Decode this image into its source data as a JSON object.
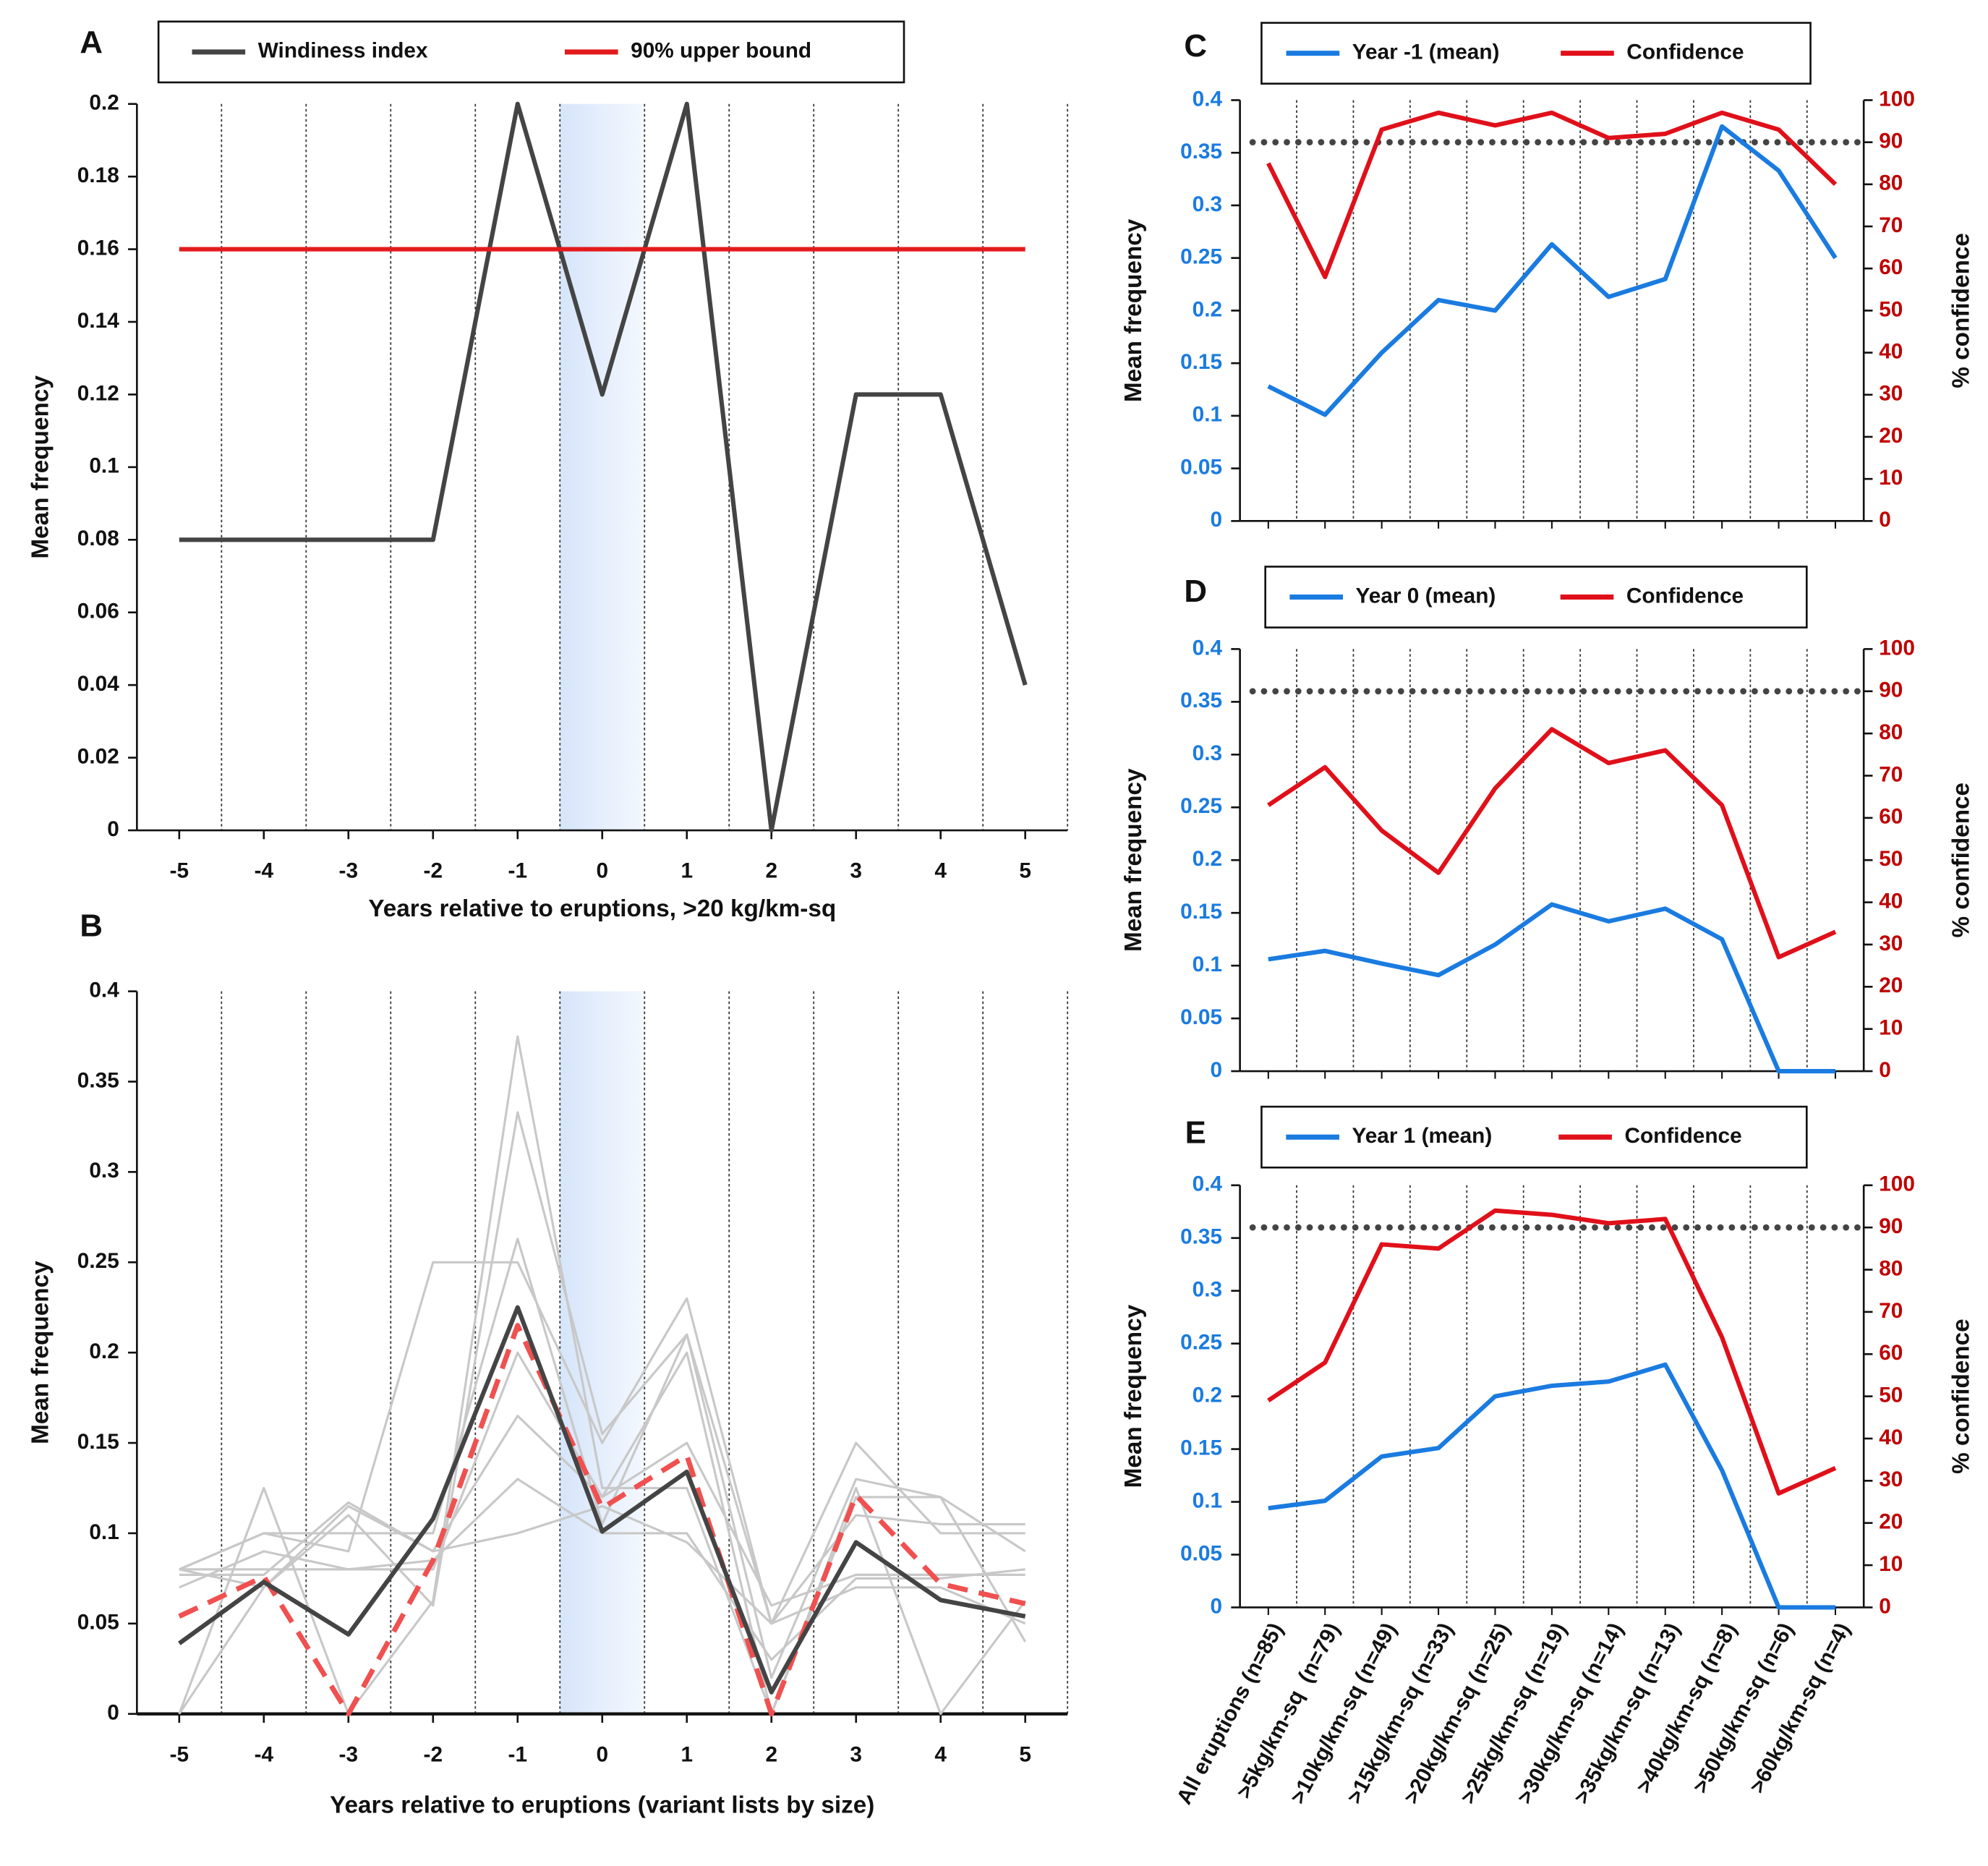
{
  "chart_data": [
    {
      "type": "line",
      "panel_label": "A",
      "x": [
        -5,
        -4,
        -3,
        -2,
        -1,
        0,
        1,
        2,
        3,
        4,
        5
      ],
      "xlim": [
        -5.5,
        5.5
      ],
      "xticks": [
        -5,
        -4,
        -3,
        -2,
        -1,
        0,
        1,
        2,
        3,
        4,
        5
      ],
      "ylim": [
        0,
        0.2
      ],
      "yticks": [
        0,
        0.02,
        0.04,
        0.06,
        0.08,
        0.1,
        0.12,
        0.14,
        0.16,
        0.18,
        0.2
      ],
      "xlabel": "Years relative to eruptions, >20 kg/km-sq",
      "ylabel": "Mean frequency",
      "shaded_span": [
        -0.5,
        0.5
      ],
      "separators": true,
      "legend": "top",
      "series": [
        {
          "name": "Windiness index",
          "color": "#444444",
          "values": [
            0.08,
            0.08,
            0.08,
            0.08,
            0.2,
            0.12,
            0.2,
            0,
            0.12,
            0.12,
            0.04
          ]
        },
        {
          "name": "90% upper bound",
          "color": "#e31a1c",
          "values": [
            0.16,
            0.16,
            0.16,
            0.16,
            0.16,
            0.16,
            0.16,
            0.16,
            0.16,
            0.16,
            0.16
          ]
        }
      ]
    },
    {
      "type": "line",
      "panel_label": "B",
      "x": [
        -5,
        -4,
        -3,
        -2,
        -1,
        0,
        1,
        2,
        3,
        4,
        5
      ],
      "xlim": [
        -5.5,
        5.5
      ],
      "xticks": [
        -5,
        -4,
        -3,
        -2,
        -1,
        0,
        1,
        2,
        3,
        4,
        5
      ],
      "ylim": [
        0,
        0.4
      ],
      "yticks": [
        0,
        0.05,
        0.1,
        0.15,
        0.2,
        0.25,
        0.3,
        0.35,
        0.4
      ],
      "xlabel": "Years relative to eruptions (variant lists by size)",
      "ylabel": "Mean frequency",
      "shaded_span": [
        -0.5,
        0.5
      ],
      "separators": true,
      "series": [
        {
          "color": "#c8c8c8",
          "values": [
            0.08,
            0.08,
            0.08,
            0.08,
            0.2,
            0.12,
            0.2,
            0,
            0.12,
            0.12,
            0.04
          ]
        },
        {
          "color": "#c8c8c8",
          "values": [
            0.08,
            0.1,
            0.09,
            0.25,
            0.25,
            0.15,
            0.23,
            0.05,
            0.15,
            0.1,
            0.1
          ]
        },
        {
          "color": "#c8c8c8",
          "values": [
            0,
            0.125,
            0,
            0.0625,
            0.375,
            0.125,
            0.125,
            0,
            0.125,
            0,
            0.0625
          ]
        },
        {
          "color": "#c8c8c8",
          "values": [
            0.08,
            0.07,
            0.11,
            0.06,
            0.333,
            0.155,
            0.21,
            0.02,
            0.13,
            0.12,
            0.09
          ]
        },
        {
          "color": "#c8c8c8",
          "values": [
            0.08,
            0.1,
            0.1,
            0.1,
            0.263,
            0.105,
            0.21,
            0.05,
            0.11,
            0.105,
            0.105
          ]
        },
        {
          "color": "#c8c8c8",
          "values": [
            0.077,
            0.077,
            0.117,
            0.09,
            0.165,
            0.12,
            0.15,
            0.06,
            0.077,
            0.077,
            0.077
          ]
        },
        {
          "color": "#c8c8c8",
          "values": [
            0.07,
            0.09,
            0.08,
            0.085,
            0.13,
            0.1,
            0.1,
            0.03,
            0.075,
            0.075,
            0.08
          ]
        },
        {
          "color": "#c8c8c8",
          "values": [
            0,
            0.07,
            0.115,
            0.09,
            0.1,
            0.115,
            0.095,
            0.05,
            0.07,
            0.07,
            0.05
          ]
        },
        {
          "color": "#f05050",
          "dashed": true,
          "values": [
            0.054,
            0.076,
            0,
            0.085,
            0.215,
            0.114,
            0.143,
            0,
            0.121,
            0.072,
            0.061
          ]
        },
        {
          "color": "#444444",
          "values": [
            0.039,
            0.073,
            0.044,
            0.108,
            0.225,
            0.101,
            0.134,
            0.012,
            0.095,
            0.063,
            0.054
          ]
        }
      ]
    },
    {
      "type": "line",
      "panel_label": "C",
      "categories": [
        null,
        null,
        null,
        null,
        null,
        null,
        null,
        null,
        null,
        null,
        null
      ],
      "ylim": [
        0,
        0.4
      ],
      "yticks": [
        0,
        0.05,
        0.1,
        0.15,
        0.2,
        0.25,
        0.3,
        0.35,
        0.4
      ],
      "ytick_color": "#1a7be0",
      "y2lim": [
        0,
        100
      ],
      "y2ticks": [
        0,
        10,
        20,
        30,
        40,
        50,
        60,
        70,
        80,
        90,
        100
      ],
      "y2tick_color": "#c00000",
      "ylabel": "Mean frequency",
      "y2label": "% confidence",
      "separators": true,
      "legend": "top",
      "reference_line": {
        "value": 90,
        "axis": "y2",
        "color": "#444444"
      },
      "series": [
        {
          "name": "Year -1 (mean)",
          "color": "#1a7be0",
          "values": [
            0.128,
            0.101,
            0.16,
            0.21,
            0.2,
            0.263,
            0.213,
            0.23,
            0.375,
            0.333,
            0.25
          ]
        },
        {
          "name": "Confidence",
          "color": "#e0101a",
          "axis": "y2",
          "values": [
            85,
            58,
            93,
            97,
            94,
            97,
            91,
            92,
            97,
            93,
            80
          ]
        }
      ]
    },
    {
      "type": "line",
      "panel_label": "D",
      "categories": [
        null,
        null,
        null,
        null,
        null,
        null,
        null,
        null,
        null,
        null,
        null
      ],
      "ylim": [
        0,
        0.4
      ],
      "yticks": [
        0,
        0.05,
        0.1,
        0.15,
        0.2,
        0.25,
        0.3,
        0.35,
        0.4
      ],
      "ytick_color": "#1a7be0",
      "y2lim": [
        0,
        100
      ],
      "y2ticks": [
        0,
        10,
        20,
        30,
        40,
        50,
        60,
        70,
        80,
        90,
        100
      ],
      "y2tick_color": "#c00000",
      "ylabel": "Mean frequency",
      "y2label": "% confidence",
      "separators": true,
      "legend": "top",
      "reference_line": {
        "value": 90,
        "axis": "y2",
        "color": "#444444"
      },
      "series": [
        {
          "name": "Year 0 (mean)",
          "color": "#1a7be0",
          "values": [
            0.106,
            0.114,
            0.102,
            0.091,
            0.12,
            0.158,
            0.142,
            0.154,
            0.125,
            0,
            0
          ]
        },
        {
          "name": "Confidence",
          "color": "#e0101a",
          "axis": "y2",
          "values": [
            63,
            72,
            57,
            47,
            67,
            81,
            73,
            76,
            63,
            27,
            33
          ]
        }
      ]
    },
    {
      "type": "line",
      "panel_label": "E",
      "categories": [
        "All eruptions (n=85)",
        ">5kg/km-sq  (n=79)",
        ">10kg/km-sq (n=49)",
        ">15kg/km-sq (n=33)",
        ">20kg/km-sq (n=25)",
        ">25kg/km-sq (n=19)",
        ">30kg/km-sq (n=14)",
        ">35kg/km-sq (n=13)",
        ">40kg/km-sq (n=8)",
        ">50kg/km-sq (n=6)",
        ">60kg/km-sq (n=4)"
      ],
      "ylim": [
        0,
        0.4
      ],
      "yticks": [
        0,
        0.05,
        0.1,
        0.15,
        0.2,
        0.25,
        0.3,
        0.35,
        0.4
      ],
      "ytick_color": "#1a7be0",
      "y2lim": [
        0,
        100
      ],
      "y2ticks": [
        0,
        10,
        20,
        30,
        40,
        50,
        60,
        70,
        80,
        90,
        100
      ],
      "y2tick_color": "#c00000",
      "ylabel": "Mean frequency",
      "y2label": "% confidence",
      "separators": true,
      "legend": "top",
      "reference_line": {
        "value": 90,
        "axis": "y2",
        "color": "#444444"
      },
      "series": [
        {
          "name": "Year 1 (mean)",
          "color": "#1a7be0",
          "values": [
            0.094,
            0.101,
            0.143,
            0.151,
            0.2,
            0.21,
            0.214,
            0.23,
            0.13,
            0,
            0
          ]
        },
        {
          "name": "Confidence",
          "color": "#e0101a",
          "axis": "y2",
          "values": [
            49,
            58,
            86,
            85,
            94,
            93,
            91,
            92,
            64,
            27,
            33
          ]
        }
      ]
    }
  ]
}
